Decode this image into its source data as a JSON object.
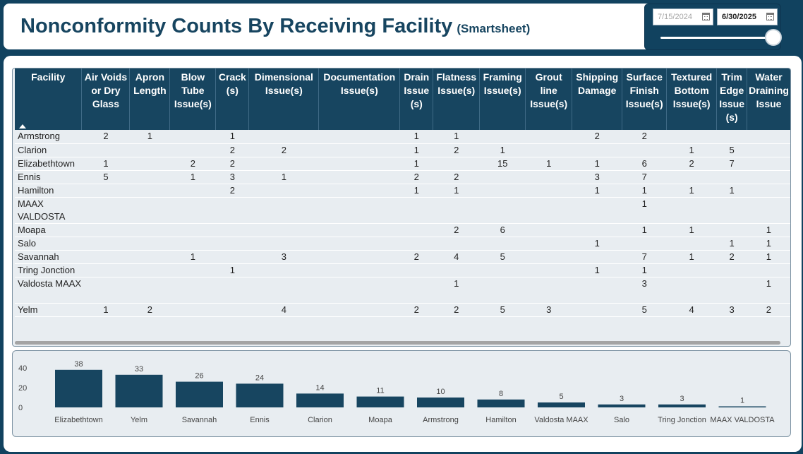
{
  "header": {
    "title": "Nonconformity Counts By Receiving Facility",
    "subtitle": "(Smartsheet)"
  },
  "date_filter": {
    "start": "7/15/2024",
    "end": "6/30/2025",
    "icon": "calendar-icon"
  },
  "table": {
    "columns": [
      "Facility",
      "Air Voids or Dry Glass",
      "Apron Length",
      "Blow Tube Issue(s)",
      "Crack (s)",
      "Dimensional Issue(s)",
      "Documentation Issue(s)",
      "Drain Issue (s)",
      "Flatness Issue(s)",
      "Framing Issue(s)",
      "Grout line Issue(s)",
      "Shipping Damage",
      "Surface Finish Issue(s)",
      "Textured Bottom Issue(s)",
      "Trim Edge Issue (s)",
      "Water Draining Issue"
    ],
    "rows": [
      [
        "Armstrong",
        "2",
        "1",
        "",
        "1",
        "",
        "",
        "1",
        "1",
        "",
        "",
        "2",
        "2",
        "",
        "",
        ""
      ],
      [
        "Clarion",
        "",
        "",
        "",
        "2",
        "2",
        "",
        "1",
        "2",
        "1",
        "",
        "",
        "",
        "1",
        "5",
        ""
      ],
      [
        "Elizabethtown",
        "1",
        "",
        "2",
        "2",
        "",
        "",
        "1",
        "",
        "15",
        "1",
        "1",
        "6",
        "2",
        "7",
        ""
      ],
      [
        "Ennis",
        "5",
        "",
        "1",
        "3",
        "1",
        "",
        "2",
        "2",
        "",
        "",
        "3",
        "7",
        "",
        "",
        ""
      ],
      [
        "Hamilton",
        "",
        "",
        "",
        "2",
        "",
        "",
        "1",
        "1",
        "",
        "",
        "1",
        "1",
        "1",
        "1",
        ""
      ],
      [
        "MAAX VALDOSTA",
        "",
        "",
        "",
        "",
        "",
        "",
        "",
        "",
        "",
        "",
        "",
        "1",
        "",
        "",
        ""
      ],
      [
        "Moapa",
        "",
        "",
        "",
        "",
        "",
        "",
        "",
        "2",
        "6",
        "",
        "",
        "1",
        "1",
        "",
        "1"
      ],
      [
        "Salo",
        "",
        "",
        "",
        "",
        "",
        "",
        "",
        "",
        "",
        "",
        "1",
        "",
        "",
        "1",
        "1"
      ],
      [
        "Savannah",
        "",
        "",
        "1",
        "",
        "3",
        "",
        "2",
        "4",
        "5",
        "",
        "",
        "7",
        "1",
        "2",
        "1"
      ],
      [
        "Tring Jonction",
        "",
        "",
        "",
        "1",
        "",
        "",
        "",
        "",
        "",
        "",
        "1",
        "1",
        "",
        "",
        ""
      ],
      [
        "Valdosta MAAX",
        "",
        "",
        "",
        "",
        "",
        "",
        "",
        "1",
        "",
        "",
        "",
        "3",
        "",
        "",
        "1"
      ],
      [
        "Yelm",
        "1",
        "2",
        "",
        "",
        "4",
        "",
        "2",
        "2",
        "5",
        "3",
        "",
        "5",
        "4",
        "3",
        "2"
      ]
    ]
  },
  "chart_data": {
    "type": "bar",
    "categories": [
      "Elizabethtown",
      "Yelm",
      "Savannah",
      "Ennis",
      "Clarion",
      "Moapa",
      "Armstrong",
      "Hamilton",
      "Valdosta MAAX",
      "Salo",
      "Tring Jonction",
      "MAAX VALDOSTA"
    ],
    "values": [
      38,
      33,
      26,
      24,
      14,
      11,
      10,
      8,
      5,
      3,
      3,
      1
    ],
    "yticks": [
      0,
      20,
      40
    ],
    "ylim": [
      0,
      40
    ],
    "bar_color": "#174560",
    "grid": false
  },
  "colors": {
    "background": "#11425f",
    "header_bg": "#174560",
    "panel_bg": "#e8edf1",
    "title": "#174560"
  }
}
